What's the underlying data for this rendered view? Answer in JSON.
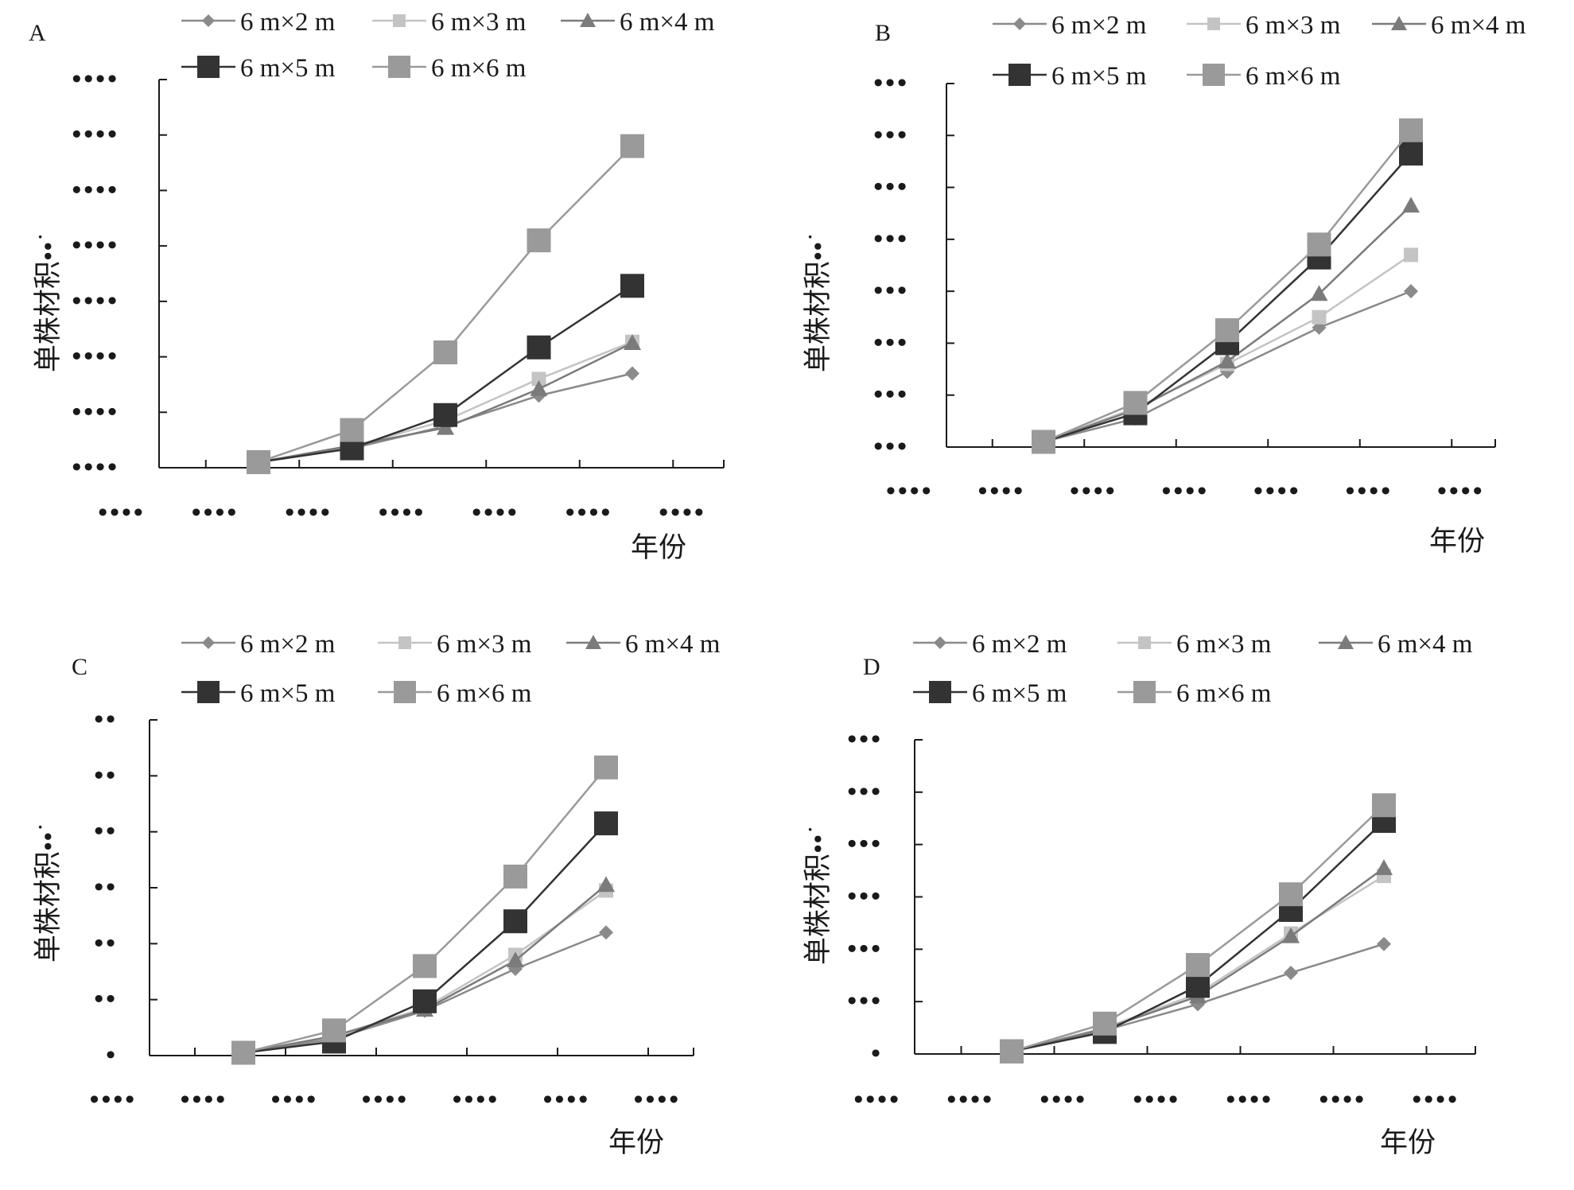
{
  "colors": {
    "6x2": "#8a8a8a",
    "6x3": "#c4c4c4",
    "6x4": "#7b7b7b",
    "6x5": "#333333",
    "6x6": "#9a9a9a",
    "axis": "#1a1a1a"
  },
  "chart_data": [
    {
      "panel": "A",
      "type": "line",
      "ylabel": "单株材积••",
      "ylabel_suffix": "˙",
      "xlabel": "年份",
      "y_tick_labels": [
        "••••",
        "••••",
        "••••",
        "••••",
        "••••",
        "••••",
        "••••",
        "••••"
      ],
      "x_tick_labels": [
        "••••",
        "••••",
        "••••",
        "••••",
        "••••",
        "••••",
        "••••"
      ],
      "ylim": [
        0,
        7
      ],
      "x": [
        1,
        2,
        3,
        4,
        5
      ],
      "series": [
        {
          "name": "6 m×2 m",
          "key": "6x2",
          "marker": "diamond",
          "values": [
            0.1,
            0.35,
            0.75,
            1.3,
            1.7
          ]
        },
        {
          "name": "6 m×3 m",
          "key": "6x3",
          "marker": "square-small",
          "values": [
            0.1,
            0.38,
            0.85,
            1.6,
            2.27
          ]
        },
        {
          "name": "6 m×4 m",
          "key": "6x4",
          "marker": "triangle",
          "values": [
            0.1,
            0.4,
            0.72,
            1.42,
            2.25
          ]
        },
        {
          "name": "6 m×5 m",
          "key": "6x5",
          "marker": "square",
          "values": [
            0.1,
            0.35,
            0.95,
            2.17,
            3.28
          ]
        },
        {
          "name": "6 m×6 m",
          "key": "6x6",
          "marker": "square",
          "values": [
            0.1,
            0.68,
            2.08,
            4.1,
            5.8
          ]
        }
      ]
    },
    {
      "panel": "B",
      "type": "line",
      "ylabel": "单株材积••",
      "ylabel_suffix": "˙",
      "xlabel": "年份",
      "y_tick_labels": [
        "•••",
        "•••",
        "•••",
        "•••",
        "•••",
        "•••",
        "•••",
        "•••"
      ],
      "x_tick_labels": [
        "••••",
        "••••",
        "••••",
        "••••",
        "••••",
        "••••",
        "••••"
      ],
      "ylim": [
        0,
        7
      ],
      "x": [
        1,
        2,
        3,
        4,
        5
      ],
      "series": [
        {
          "name": "6 m×2 m",
          "key": "6x2",
          "marker": "diamond",
          "values": [
            0.1,
            0.55,
            1.45,
            2.3,
            3.0
          ]
        },
        {
          "name": "6 m×3 m",
          "key": "6x3",
          "marker": "square-small",
          "values": [
            0.1,
            0.75,
            1.6,
            2.5,
            3.7
          ]
        },
        {
          "name": "6 m×4 m",
          "key": "6x4",
          "marker": "triangle",
          "values": [
            0.1,
            0.72,
            1.65,
            2.95,
            4.65
          ]
        },
        {
          "name": "6 m×5 m",
          "key": "6x5",
          "marker": "square",
          "values": [
            0.1,
            0.65,
            2.0,
            3.65,
            5.65
          ]
        },
        {
          "name": "6 m×6 m",
          "key": "6x6",
          "marker": "square",
          "values": [
            0.1,
            0.85,
            2.25,
            3.9,
            6.1
          ]
        }
      ]
    },
    {
      "panel": "C",
      "type": "line",
      "ylabel": "单株材积••",
      "ylabel_suffix": "˙",
      "xlabel": "年份",
      "y_tick_labels": [
        "•",
        "••",
        "••",
        "••",
        "••",
        "••",
        "••"
      ],
      "x_tick_labels": [
        "••••",
        "••••",
        "••••",
        "••••",
        "••••",
        "••••",
        "••••"
      ],
      "ylim": [
        0,
        6
      ],
      "x": [
        1,
        2,
        3,
        4,
        5
      ],
      "series": [
        {
          "name": "6 m×2 m",
          "key": "6x2",
          "marker": "diamond",
          "values": [
            0.05,
            0.3,
            0.8,
            1.55,
            2.2
          ]
        },
        {
          "name": "6 m×3 m",
          "key": "6x3",
          "marker": "square-small",
          "values": [
            0.05,
            0.35,
            0.85,
            1.8,
            2.95
          ]
        },
        {
          "name": "6 m×4 m",
          "key": "6x4",
          "marker": "triangle",
          "values": [
            0.05,
            0.35,
            0.82,
            1.7,
            3.05
          ]
        },
        {
          "name": "6 m×5 m",
          "key": "6x5",
          "marker": "square",
          "values": [
            0.05,
            0.25,
            0.97,
            2.4,
            4.15
          ]
        },
        {
          "name": "6 m×6 m",
          "key": "6x6",
          "marker": "square",
          "values": [
            0.05,
            0.45,
            1.6,
            3.2,
            5.15
          ]
        }
      ]
    },
    {
      "panel": "D",
      "type": "line",
      "ylabel": "单株材积••",
      "ylabel_suffix": "˙",
      "xlabel": "年份",
      "y_tick_labels": [
        "•",
        "•••",
        "•••",
        "•••",
        "•••",
        "•••",
        "•••"
      ],
      "x_tick_labels": [
        "••••",
        "••••",
        "••••",
        "••••",
        "••••",
        "••••",
        "••••"
      ],
      "ylim": [
        0,
        6
      ],
      "x": [
        1,
        2,
        3,
        4,
        5
      ],
      "series": [
        {
          "name": "6 m×2 m",
          "key": "6x2",
          "marker": "diamond",
          "values": [
            0.05,
            0.45,
            0.95,
            1.55,
            2.1
          ]
        },
        {
          "name": "6 m×3 m",
          "key": "6x3",
          "marker": "square-small",
          "values": [
            0.05,
            0.5,
            1.15,
            2.3,
            3.4
          ]
        },
        {
          "name": "6 m×4 m",
          "key": "6x4",
          "marker": "triangle",
          "values": [
            0.05,
            0.48,
            1.1,
            2.25,
            3.55
          ]
        },
        {
          "name": "6 m×5 m",
          "key": "6x5",
          "marker": "square",
          "values": [
            0.05,
            0.42,
            1.3,
            2.75,
            4.45
          ]
        },
        {
          "name": "6 m×6 m",
          "key": "6x6",
          "marker": "square",
          "values": [
            0.05,
            0.58,
            1.7,
            3.05,
            4.75
          ]
        }
      ]
    }
  ]
}
